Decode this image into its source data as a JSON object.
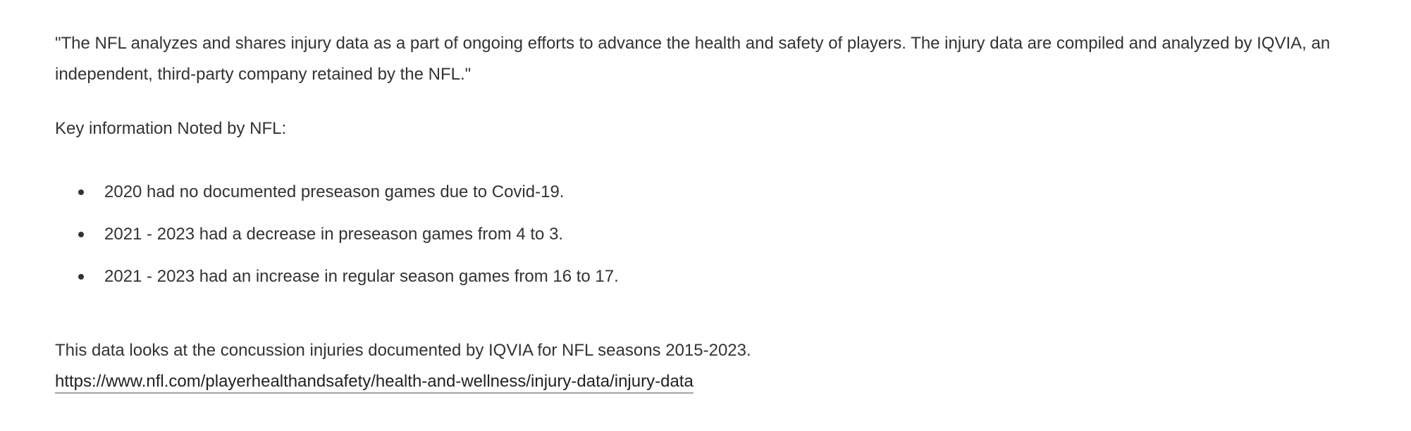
{
  "intro": "\"The NFL analyzes and shares injury data as a part of ongoing efforts to advance the health and safety of players. The injury data are compiled and analyzed by IQVIA, an independent, third-party company retained by the NFL.\"",
  "key_heading": "Key information Noted by NFL:",
  "bullets": [
    "2020 had no documented preseason games due to Covid-19.",
    "2021 - 2023 had a decrease in preseason games from 4 to 3.",
    "2021 - 2023 had an increase in regular season games from 16 to 17."
  ],
  "summary": "This data looks at the concussion injuries documented by IQVIA for NFL seasons 2015-2023.",
  "link": "https://www.nfl.com/playerhealthandsafety/health-and-wellness/injury-data/injury-data"
}
